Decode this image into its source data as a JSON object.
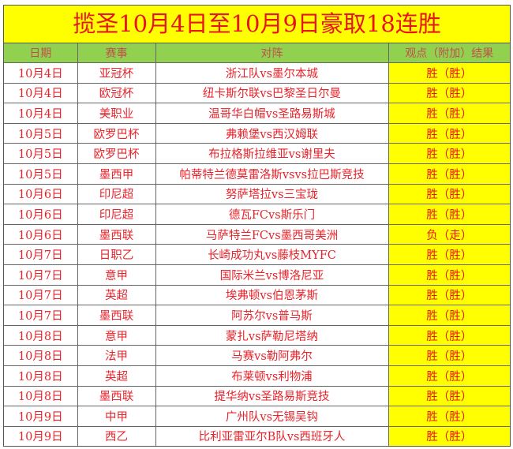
{
  "title": "揽圣10月4日至10月9日豪取18连胜",
  "columns": [
    "日期",
    "赛事",
    "对阵",
    "观点（附加）结果"
  ],
  "colors": {
    "title_bg": "#ffff00",
    "title_text": "#e8141c",
    "header_bg": "#92d050",
    "result_bg": "#ffff00"
  },
  "rows": [
    {
      "date": "10月4日",
      "league": "亚冠杯",
      "match": "浙江队vs墨尔本城",
      "result": "胜（胜）"
    },
    {
      "date": "10月4日",
      "league": "欧冠杯",
      "match": "纽卡斯尔联vs巴黎圣日尔曼",
      "result": "胜（胜）"
    },
    {
      "date": "10月4日",
      "league": "美职业",
      "match": "温哥华白帽vs圣路易斯城",
      "result": "胜（胜）"
    },
    {
      "date": "10月5日",
      "league": "欧罗巴杯",
      "match": "弗赖堡vs西汉姆联",
      "result": "胜（胜）"
    },
    {
      "date": "10月5日",
      "league": "欧罗巴杯",
      "match": "布拉格斯拉维亚vs谢里夫",
      "result": "胜（胜）"
    },
    {
      "date": "10月5日",
      "league": "墨西甲",
      "match": "帕蒂特兰德莫雷洛斯vsvs拉巴斯竞技",
      "result": "胜（胜）"
    },
    {
      "date": "10月6日",
      "league": "印尼超",
      "match": "努萨塔拉vs三宝珑",
      "result": "胜（胜）"
    },
    {
      "date": "10月6日",
      "league": "印尼超",
      "match": "德瓦FCvs斯乐门",
      "result": "胜（胜）"
    },
    {
      "date": "10月6日",
      "league": "墨西联",
      "match": "马萨特兰FCvs墨西哥美洲",
      "result": "负（走）"
    },
    {
      "date": "10月7日",
      "league": "日职乙",
      "match": "长崎成功丸vs藤枝MYFC",
      "result": "胜（胜）"
    },
    {
      "date": "10月7日",
      "league": "意甲",
      "match": "国际米兰vs博洛尼亚",
      "result": "胜（胜）"
    },
    {
      "date": "10月7日",
      "league": "英超",
      "match": "埃弗顿vs伯恩茅斯",
      "result": "胜（胜）"
    },
    {
      "date": "10月7日",
      "league": "墨西联",
      "match": "阿苏尔vs普马斯",
      "result": "胜（胜）"
    },
    {
      "date": "10月8日",
      "league": "意甲",
      "match": "蒙扎vs萨勒尼塔纳",
      "result": "胜（胜）"
    },
    {
      "date": "10月8日",
      "league": "法甲",
      "match": "马赛vs勒阿弗尔",
      "result": "胜（胜）"
    },
    {
      "date": "10月8日",
      "league": "英超",
      "match": "布莱顿vs利物浦",
      "result": "胜（胜）"
    },
    {
      "date": "10月8日",
      "league": "墨西联",
      "match": "提华纳vs圣路易斯竞技",
      "result": "胜（胜）"
    },
    {
      "date": "10月9日",
      "league": "中甲",
      "match": "广州队vs无锡吴钩",
      "result": "胜（胜）"
    },
    {
      "date": "10月9日",
      "league": "西乙",
      "match": "比利亚雷亚尔B队vs西班牙人",
      "result": "胜（胜）"
    }
  ]
}
